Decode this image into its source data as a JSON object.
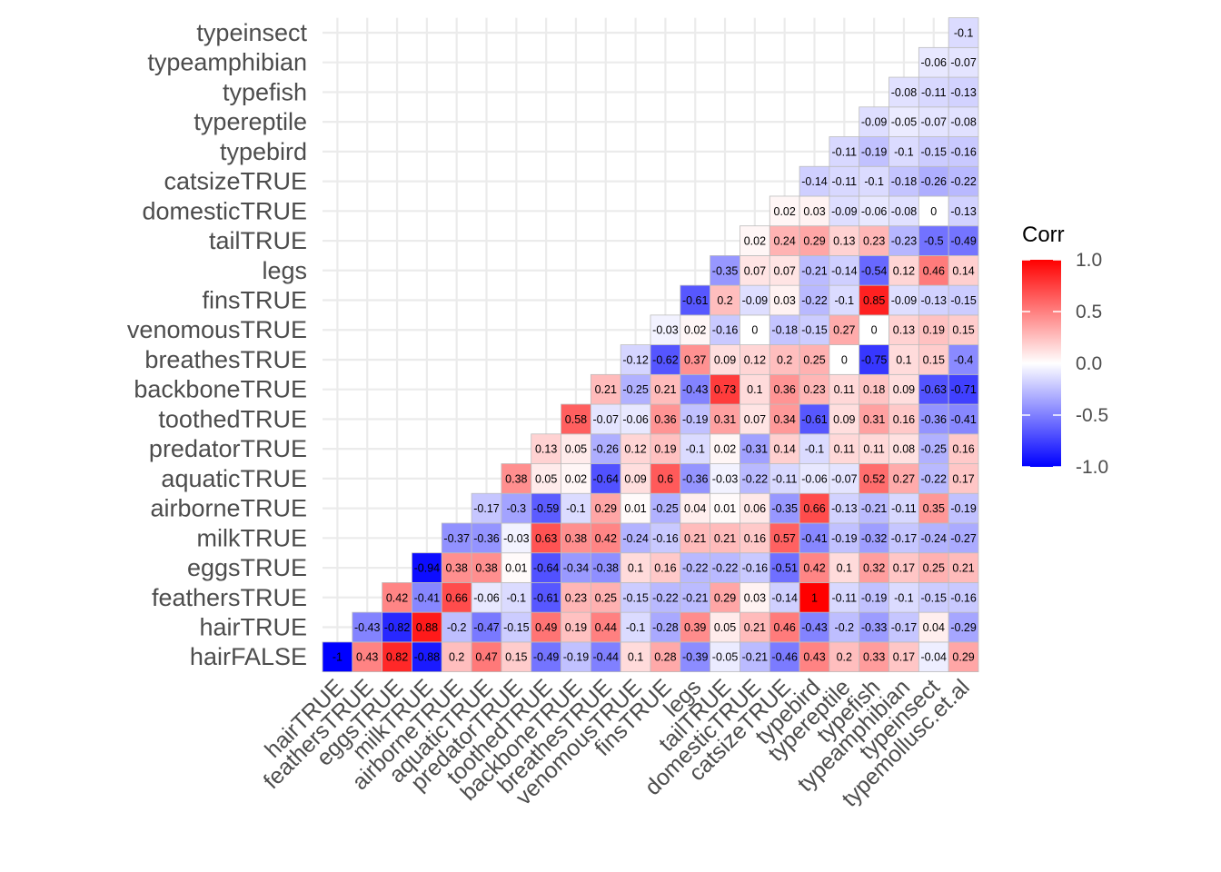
{
  "chart_data": {
    "type": "heatmap",
    "title": "",
    "xlabel": "",
    "ylabel": "",
    "x_variables": [
      "hairTRUE",
      "feathersTRUE",
      "eggsTRUE",
      "milkTRUE",
      "airborneTRUE",
      "aquaticTRUE",
      "predatorTRUE",
      "toothedTRUE",
      "backboneTRUE",
      "breathesTRUE",
      "venomousTRUE",
      "finsTRUE",
      "legs",
      "tailTRUE",
      "domesticTRUE",
      "catsizeTRUE",
      "typebird",
      "typereptile",
      "typefish",
      "typeamphibian",
      "typeinsect",
      "typemollusc.et.al"
    ],
    "y_variables": [
      "hairFALSE",
      "hairTRUE",
      "feathersTRUE",
      "eggsTRUE",
      "milkTRUE",
      "airborneTRUE",
      "aquaticTRUE",
      "predatorTRUE",
      "toothedTRUE",
      "backboneTRUE",
      "breathesTRUE",
      "venomousTRUE",
      "finsTRUE",
      "legs",
      "tailTRUE",
      "domesticTRUE",
      "catsizeTRUE",
      "typebird",
      "typereptile",
      "typefish",
      "typeamphibian",
      "typeinsect"
    ],
    "note_structure": "rows[i] lists correlations of y_variables[i] with x_variables[i..end]",
    "rows": [
      [
        -1,
        0.43,
        0.82,
        -0.88,
        0.2,
        0.47,
        0.15,
        -0.49,
        -0.19,
        -0.44,
        0.1,
        0.28,
        -0.39,
        -0.05,
        -0.21,
        -0.46,
        0.43,
        0.2,
        0.33,
        0.17,
        -0.04,
        0.29
      ],
      [
        -0.43,
        -0.82,
        0.88,
        -0.2,
        -0.47,
        -0.15,
        0.49,
        0.19,
        0.44,
        -0.1,
        -0.28,
        0.39,
        0.05,
        0.21,
        0.46,
        -0.43,
        -0.2,
        -0.33,
        -0.17,
        0.04,
        -0.29
      ],
      [
        0.42,
        -0.41,
        0.66,
        -0.06,
        -0.1,
        -0.61,
        0.23,
        0.25,
        -0.15,
        -0.22,
        -0.21,
        0.29,
        0.03,
        -0.14,
        1,
        -0.11,
        -0.19,
        -0.1,
        -0.15,
        -0.16
      ],
      [
        -0.94,
        0.38,
        0.38,
        0.01,
        -0.64,
        -0.34,
        -0.38,
        0.1,
        0.16,
        -0.22,
        -0.22,
        -0.16,
        -0.51,
        0.42,
        0.1,
        0.32,
        0.17,
        0.25,
        0.21
      ],
      [
        -0.37,
        -0.36,
        -0.03,
        0.63,
        0.38,
        0.42,
        -0.24,
        -0.16,
        0.21,
        0.21,
        0.16,
        0.57,
        -0.41,
        -0.19,
        -0.32,
        -0.17,
        -0.24,
        -0.27
      ],
      [
        -0.17,
        -0.3,
        -0.59,
        -0.1,
        0.29,
        0.01,
        -0.25,
        0.04,
        0.01,
        0.06,
        -0.35,
        0.66,
        -0.13,
        -0.21,
        -0.11,
        0.35,
        -0.19
      ],
      [
        0.38,
        0.05,
        0.02,
        -0.64,
        0.09,
        0.6,
        -0.36,
        -0.03,
        -0.22,
        -0.11,
        -0.06,
        -0.07,
        0.52,
        0.27,
        -0.22,
        0.17
      ],
      [
        0.13,
        0.05,
        -0.26,
        0.12,
        0.19,
        -0.1,
        0.02,
        -0.31,
        0.14,
        -0.1,
        0.11,
        0.11,
        0.08,
        -0.25,
        0.16
      ],
      [
        0.58,
        -0.07,
        -0.06,
        0.36,
        -0.19,
        0.31,
        0.07,
        0.34,
        -0.61,
        0.09,
        0.31,
        0.16,
        -0.36,
        -0.41
      ],
      [
        0.21,
        -0.25,
        0.21,
        -0.43,
        0.73,
        0.1,
        0.36,
        0.23,
        0.11,
        0.18,
        0.09,
        -0.63,
        -0.71
      ],
      [
        -0.12,
        -0.62,
        0.37,
        0.09,
        0.12,
        0.2,
        0.25,
        0,
        -0.75,
        0.1,
        0.15,
        -0.4
      ],
      [
        -0.03,
        0.02,
        -0.16,
        0,
        -0.18,
        -0.15,
        0.27,
        0,
        0.13,
        0.19,
        0.15
      ],
      [
        -0.61,
        0.2,
        -0.09,
        0.03,
        -0.22,
        -0.1,
        0.85,
        -0.09,
        -0.13,
        -0.15
      ],
      [
        -0.35,
        0.07,
        0.07,
        -0.21,
        -0.14,
        -0.54,
        0.12,
        0.46,
        0.14
      ],
      [
        0.02,
        0.24,
        0.29,
        0.13,
        0.23,
        -0.23,
        -0.5,
        -0.49
      ],
      [
        0.02,
        0.03,
        -0.09,
        -0.06,
        -0.08,
        0,
        -0.13
      ],
      [
        -0.14,
        -0.11,
        -0.1,
        -0.18,
        -0.26,
        -0.22
      ],
      [
        -0.11,
        -0.19,
        -0.1,
        -0.15,
        -0.16
      ],
      [
        -0.09,
        -0.05,
        -0.07,
        -0.08
      ],
      [
        -0.08,
        -0.11,
        -0.13
      ],
      [
        -0.06,
        -0.07
      ],
      [
        -0.1
      ]
    ],
    "color_scale": {
      "low": "#0000FF",
      "mid": "#FFFFFF",
      "high": "#FF0000",
      "limits": [
        -1,
        1
      ]
    },
    "legend": {
      "title": "Corr",
      "ticks": [
        "1.0",
        "0.5",
        "0.0",
        "-0.5",
        "-1.0"
      ],
      "tick_values": [
        1,
        0.5,
        0,
        -0.5,
        -1
      ],
      "placement": "right"
    },
    "grid": true,
    "cell_labels": true
  }
}
